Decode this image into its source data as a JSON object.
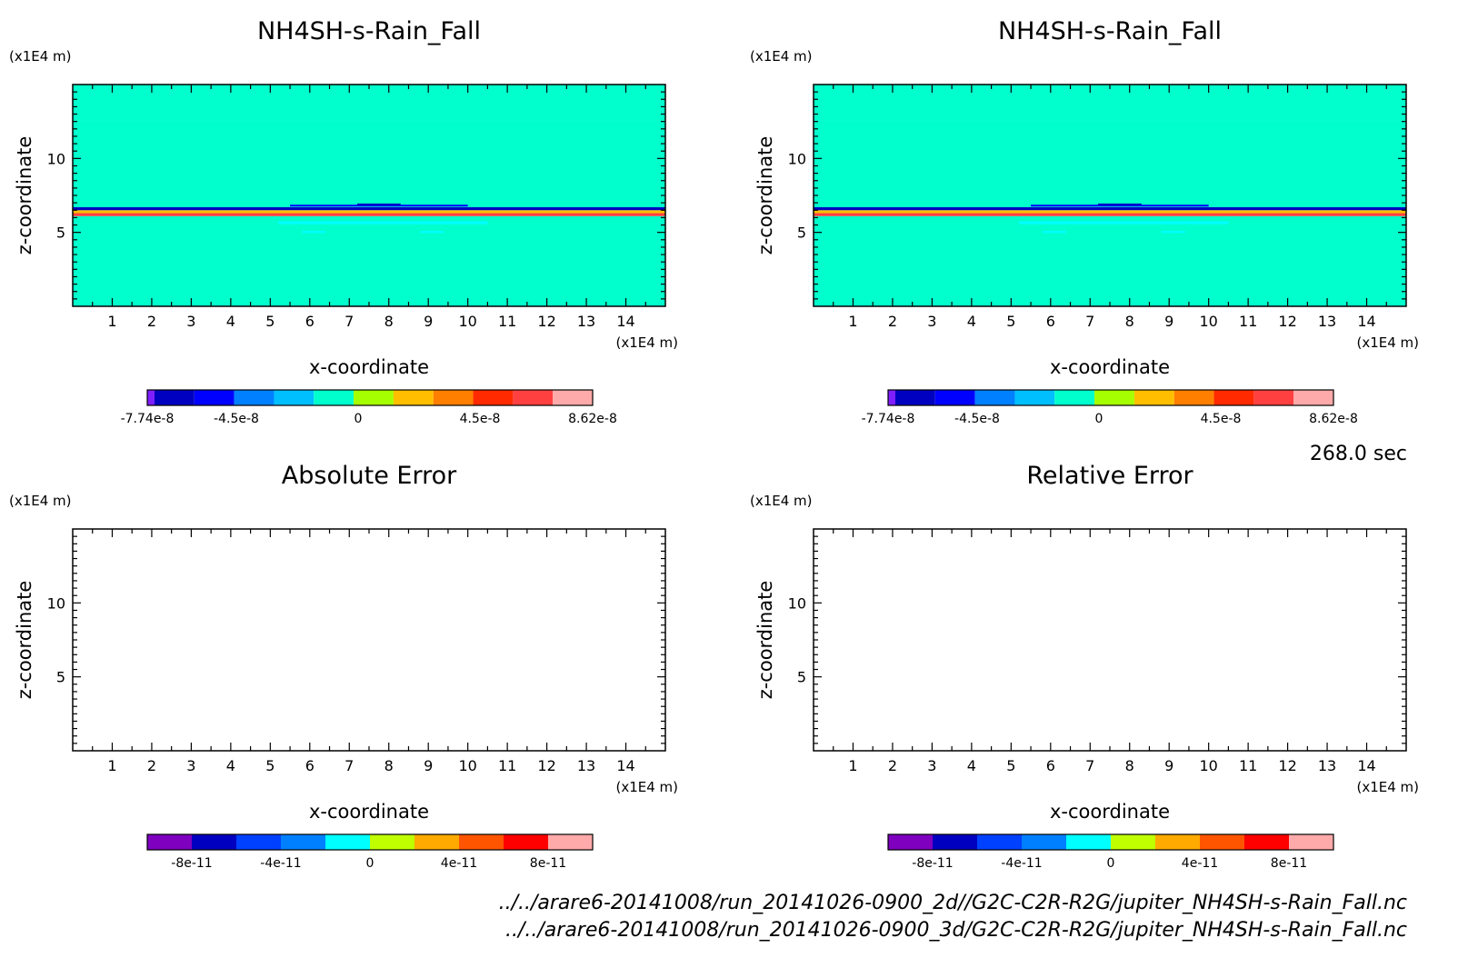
{
  "time_label": "268.0 sec",
  "files": [
    "../../arare6-20141008/run_20141026-0900_2d//G2C-C2R-R2G/jupiter_NH4SH-s-Rain_Fall.nc",
    "../../arare6-20141008/run_20141026-0900_3d/G2C-C2R-R2G/jupiter_NH4SH-s-Rain_Fall.nc"
  ],
  "chart_data": [
    {
      "type": "heatmap",
      "title": "NH4SH-s-Rain_Fall",
      "xlabel": "x-coordinate",
      "ylabel": "z-coordinate",
      "x_unit": "(x1E4 m)",
      "y_unit": "(x1E4 m)",
      "xlim": [
        0,
        15
      ],
      "ylim": [
        0,
        15
      ],
      "xticks": [
        "1",
        "2",
        "3",
        "4",
        "5",
        "6",
        "7",
        "8",
        "9",
        "10",
        "11",
        "12",
        "13",
        "14"
      ],
      "yticks": [
        "5",
        "10"
      ],
      "field_bands": [
        {
          "z0": 0,
          "z1": 6.1,
          "value": 2e-09
        },
        {
          "z0": 6.1,
          "z1": 6.3,
          "value": 6e-08
        },
        {
          "z0": 6.3,
          "z1": 6.5,
          "value": 2.5e-08
        },
        {
          "z0": 6.5,
          "z1": 6.7,
          "value": -5.5e-08
        },
        {
          "z0": 6.7,
          "z1": 12.6,
          "value": -8e-09
        },
        {
          "z0": 12.6,
          "z1": 15,
          "value": 2e-09
        }
      ],
      "colorbar": {
        "ticks": [
          "-7.74e-8",
          "-4.5e-8",
          "0",
          "4.5e-8",
          "8.62e-8"
        ],
        "colors": [
          "#7f1fff",
          "#0000c0",
          "#0000ff",
          "#0080ff",
          "#00bfff",
          "#00ffcc",
          "#a6ff00",
          "#ffbf00",
          "#ff7f00",
          "#ff2a00",
          "#ff4040",
          "#ffaaaa"
        ]
      }
    },
    {
      "type": "heatmap",
      "title": "NH4SH-s-Rain_Fall",
      "xlabel": "x-coordinate",
      "ylabel": "z-coordinate",
      "x_unit": "(x1E4 m)",
      "y_unit": "(x1E4 m)",
      "xlim": [
        0,
        15
      ],
      "ylim": [
        0,
        15
      ],
      "xticks": [
        "1",
        "2",
        "3",
        "4",
        "5",
        "6",
        "7",
        "8",
        "9",
        "10",
        "11",
        "12",
        "13",
        "14"
      ],
      "yticks": [
        "5",
        "10"
      ],
      "field_bands": [
        {
          "z0": 0,
          "z1": 6.1,
          "value": 2e-09
        },
        {
          "z0": 6.1,
          "z1": 6.3,
          "value": 6e-08
        },
        {
          "z0": 6.3,
          "z1": 6.5,
          "value": 2.5e-08
        },
        {
          "z0": 6.5,
          "z1": 6.7,
          "value": -5.5e-08
        },
        {
          "z0": 6.7,
          "z1": 12.6,
          "value": -8e-09
        },
        {
          "z0": 12.6,
          "z1": 15,
          "value": 2e-09
        }
      ],
      "colorbar": {
        "ticks": [
          "-7.74e-8",
          "-4.5e-8",
          "0",
          "4.5e-8",
          "8.62e-8"
        ],
        "colors": [
          "#7f1fff",
          "#0000c0",
          "#0000ff",
          "#0080ff",
          "#00bfff",
          "#00ffcc",
          "#a6ff00",
          "#ffbf00",
          "#ff7f00",
          "#ff2a00",
          "#ff4040",
          "#ffaaaa"
        ]
      }
    },
    {
      "type": "heatmap",
      "title": "Absolute Error",
      "xlabel": "x-coordinate",
      "ylabel": "z-coordinate",
      "x_unit": "(x1E4 m)",
      "y_unit": "(x1E4 m)",
      "xlim": [
        0,
        15
      ],
      "ylim": [
        0,
        15
      ],
      "xticks": [
        "1",
        "2",
        "3",
        "4",
        "5",
        "6",
        "7",
        "8",
        "9",
        "10",
        "11",
        "12",
        "13",
        "14"
      ],
      "yticks": [
        "5",
        "10"
      ],
      "field_bands": [],
      "colorbar": {
        "ticks": [
          "-8e-11",
          "-4e-11",
          "0",
          "4e-11",
          "8e-11"
        ],
        "colors": [
          "#7f00bf",
          "#0000c0",
          "#0040ff",
          "#0080ff",
          "#00ffff",
          "#bfff00",
          "#ffaa00",
          "#ff5500",
          "#ff0000",
          "#ffaaaa"
        ]
      }
    },
    {
      "type": "heatmap",
      "title": "Relative Error",
      "xlabel": "x-coordinate",
      "ylabel": "z-coordinate",
      "x_unit": "(x1E4 m)",
      "y_unit": "(x1E4 m)",
      "xlim": [
        0,
        15
      ],
      "ylim": [
        0,
        15
      ],
      "xticks": [
        "1",
        "2",
        "3",
        "4",
        "5",
        "6",
        "7",
        "8",
        "9",
        "10",
        "11",
        "12",
        "13",
        "14"
      ],
      "yticks": [
        "5",
        "10"
      ],
      "field_bands": [],
      "colorbar": {
        "ticks": [
          "-8e-11",
          "-4e-11",
          "0",
          "4e-11",
          "8e-11"
        ],
        "colors": [
          "#7f00bf",
          "#0000c0",
          "#0040ff",
          "#0080ff",
          "#00ffff",
          "#bfff00",
          "#ffaa00",
          "#ff5500",
          "#ff0000",
          "#ffaaaa"
        ]
      }
    }
  ]
}
